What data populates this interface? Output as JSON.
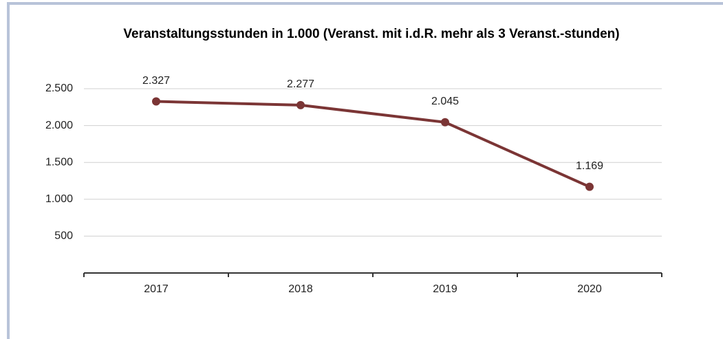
{
  "chart_data": {
    "type": "line",
    "title": "Veranstaltungsstunden in 1.000 (Veranst. mit i.d.R. mehr als 3 Veranst.-stunden)",
    "categories": [
      "2017",
      "2018",
      "2019",
      "2020"
    ],
    "series": [
      {
        "color": "#7b3535",
        "values": [
          2327,
          2277,
          2045,
          1169
        ],
        "value_labels": [
          "2.327",
          "2.277",
          "2.045",
          "1.169"
        ]
      }
    ],
    "ylim": [
      0,
      2500
    ],
    "yticks": [
      {
        "value": 500,
        "label": "500"
      },
      {
        "value": 1000,
        "label": "1.000"
      },
      {
        "value": 1500,
        "label": "1.500"
      },
      {
        "value": 2000,
        "label": "2.000"
      },
      {
        "value": 2500,
        "label": "2.500"
      }
    ],
    "grid": true
  }
}
